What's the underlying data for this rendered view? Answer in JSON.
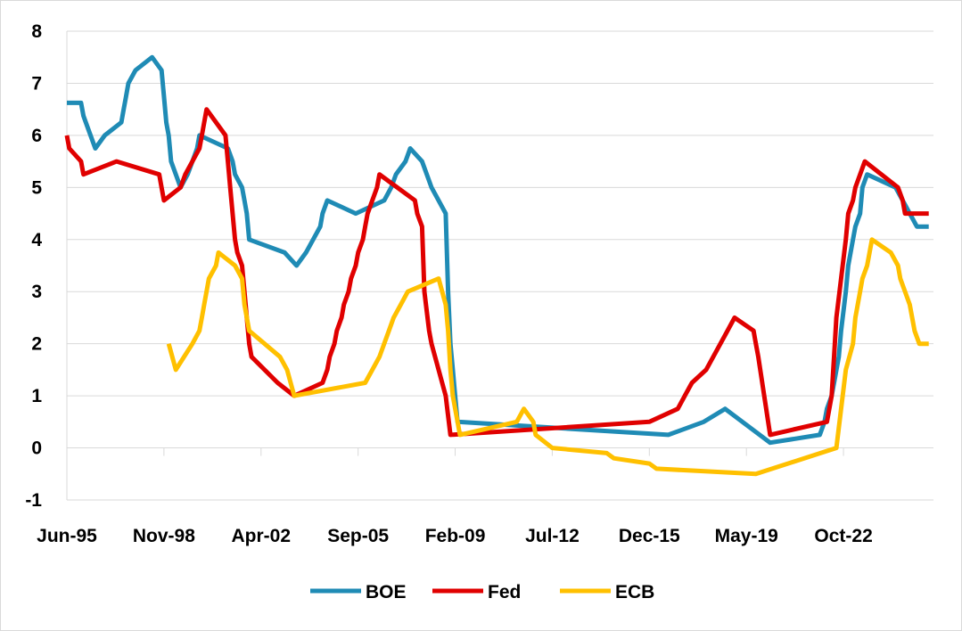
{
  "chart_data": {
    "type": "line",
    "title": "",
    "xlabel": "",
    "ylabel": "",
    "ylim": [
      -1,
      8
    ],
    "yticks": [
      "-1",
      "0",
      "1",
      "2",
      "3",
      "4",
      "5",
      "6",
      "7",
      "8"
    ],
    "xlim": [
      "1995-06",
      "2025-12"
    ],
    "xticks": [
      {
        "label": "Jun-95",
        "date": "1995-06"
      },
      {
        "label": "Nov-98",
        "date": "1998-11"
      },
      {
        "label": "Apr-02",
        "date": "2002-04"
      },
      {
        "label": "Sep-05",
        "date": "2005-09"
      },
      {
        "label": "Feb-09",
        "date": "2009-02"
      },
      {
        "label": "Jul-12",
        "date": "2012-07"
      },
      {
        "label": "Dec-15",
        "date": "2015-12"
      },
      {
        "label": "May-19",
        "date": "2019-05"
      },
      {
        "label": "Oct-22",
        "date": "2022-10"
      }
    ],
    "grid": "horizontal",
    "legend_position": "bottom",
    "series": [
      {
        "name": "BOE",
        "color": "#1f8bb5",
        "points": [
          [
            "1995-06",
            6.625
          ],
          [
            "1995-12",
            6.625
          ],
          [
            "1996-01",
            6.375
          ],
          [
            "1996-03",
            6.125
          ],
          [
            "1996-06",
            5.75
          ],
          [
            "1996-10",
            6.0
          ],
          [
            "1997-05",
            6.25
          ],
          [
            "1997-06",
            6.5
          ],
          [
            "1997-07",
            6.75
          ],
          [
            "1997-08",
            7.0
          ],
          [
            "1997-11",
            7.25
          ],
          [
            "1998-06",
            7.5
          ],
          [
            "1998-10",
            7.25
          ],
          [
            "1998-11",
            6.75
          ],
          [
            "1998-12",
            6.25
          ],
          [
            "1999-01",
            6.0
          ],
          [
            "1999-02",
            5.5
          ],
          [
            "1999-04",
            5.25
          ],
          [
            "1999-06",
            5.0
          ],
          [
            "1999-09",
            5.25
          ],
          [
            "1999-11",
            5.5
          ],
          [
            "2000-01",
            5.75
          ],
          [
            "2000-02",
            6.0
          ],
          [
            "2001-02",
            5.75
          ],
          [
            "2001-04",
            5.5
          ],
          [
            "2001-05",
            5.25
          ],
          [
            "2001-08",
            5.0
          ],
          [
            "2001-09",
            4.75
          ],
          [
            "2001-10",
            4.5
          ],
          [
            "2001-11",
            4.0
          ],
          [
            "2003-02",
            3.75
          ],
          [
            "2003-07",
            3.5
          ],
          [
            "2003-11",
            3.75
          ],
          [
            "2004-02",
            4.0
          ],
          [
            "2004-05",
            4.25
          ],
          [
            "2004-06",
            4.5
          ],
          [
            "2004-08",
            4.75
          ],
          [
            "2005-08",
            4.5
          ],
          [
            "2006-08",
            4.75
          ],
          [
            "2006-11",
            5.0
          ],
          [
            "2007-01",
            5.25
          ],
          [
            "2007-05",
            5.5
          ],
          [
            "2007-07",
            5.75
          ],
          [
            "2007-12",
            5.5
          ],
          [
            "2008-02",
            5.25
          ],
          [
            "2008-04",
            5.0
          ],
          [
            "2008-10",
            4.5
          ],
          [
            "2008-11",
            3.0
          ],
          [
            "2008-12",
            2.0
          ],
          [
            "2009-01",
            1.5
          ],
          [
            "2009-02",
            1.0
          ],
          [
            "2009-03",
            0.5
          ],
          [
            "2016-08",
            0.25
          ],
          [
            "2017-11",
            0.5
          ],
          [
            "2018-08",
            0.75
          ],
          [
            "2020-03",
            0.1
          ],
          [
            "2021-12",
            0.25
          ],
          [
            "2022-02",
            0.5
          ],
          [
            "2022-03",
            0.75
          ],
          [
            "2022-05",
            1.0
          ],
          [
            "2022-06",
            1.25
          ],
          [
            "2022-08",
            1.75
          ],
          [
            "2022-09",
            2.25
          ],
          [
            "2022-11",
            3.0
          ],
          [
            "2022-12",
            3.5
          ],
          [
            "2023-02",
            4.0
          ],
          [
            "2023-03",
            4.25
          ],
          [
            "2023-05",
            4.5
          ],
          [
            "2023-06",
            5.0
          ],
          [
            "2023-08",
            5.25
          ],
          [
            "2024-08",
            5.0
          ],
          [
            "2024-11",
            4.75
          ],
          [
            "2025-02",
            4.5
          ],
          [
            "2025-05",
            4.25
          ],
          [
            "2025-10",
            4.25
          ]
        ]
      },
      {
        "name": "Fed",
        "color": "#e00000",
        "points": [
          [
            "1995-06",
            6.0
          ],
          [
            "1995-07",
            5.75
          ],
          [
            "1995-12",
            5.5
          ],
          [
            "1996-01",
            5.25
          ],
          [
            "1997-03",
            5.5
          ],
          [
            "1998-09",
            5.25
          ],
          [
            "1998-10",
            5.0
          ],
          [
            "1998-11",
            4.75
          ],
          [
            "1999-06",
            5.0
          ],
          [
            "1999-08",
            5.25
          ],
          [
            "1999-11",
            5.5
          ],
          [
            "2000-02",
            5.75
          ],
          [
            "2000-03",
            6.0
          ],
          [
            "2000-05",
            6.5
          ],
          [
            "2001-01",
            6.0
          ],
          [
            "2001-02",
            5.5
          ],
          [
            "2001-03",
            5.0
          ],
          [
            "2001-04",
            4.5
          ],
          [
            "2001-05",
            4.0
          ],
          [
            "2001-06",
            3.75
          ],
          [
            "2001-08",
            3.5
          ],
          [
            "2001-09",
            3.0
          ],
          [
            "2001-10",
            2.5
          ],
          [
            "2001-11",
            2.0
          ],
          [
            "2001-12",
            1.75
          ],
          [
            "2002-11",
            1.25
          ],
          [
            "2003-06",
            1.0
          ],
          [
            "2004-06",
            1.25
          ],
          [
            "2004-08",
            1.5
          ],
          [
            "2004-09",
            1.75
          ],
          [
            "2004-11",
            2.0
          ],
          [
            "2004-12",
            2.25
          ],
          [
            "2005-02",
            2.5
          ],
          [
            "2005-03",
            2.75
          ],
          [
            "2005-05",
            3.0
          ],
          [
            "2005-06",
            3.25
          ],
          [
            "2005-08",
            3.5
          ],
          [
            "2005-09",
            3.75
          ],
          [
            "2005-11",
            4.0
          ],
          [
            "2005-12",
            4.25
          ],
          [
            "2006-01",
            4.5
          ],
          [
            "2006-03",
            4.75
          ],
          [
            "2006-05",
            5.0
          ],
          [
            "2006-06",
            5.25
          ],
          [
            "2007-09",
            4.75
          ],
          [
            "2007-10",
            4.5
          ],
          [
            "2007-12",
            4.25
          ],
          [
            "2008-01",
            3.0
          ],
          [
            "2008-03",
            2.25
          ],
          [
            "2008-04",
            2.0
          ],
          [
            "2008-10",
            1.0
          ],
          [
            "2008-12",
            0.25
          ],
          [
            "2015-12",
            0.5
          ],
          [
            "2016-12",
            0.75
          ],
          [
            "2017-03",
            1.0
          ],
          [
            "2017-06",
            1.25
          ],
          [
            "2017-12",
            1.5
          ],
          [
            "2018-03",
            1.75
          ],
          [
            "2018-06",
            2.0
          ],
          [
            "2018-09",
            2.25
          ],
          [
            "2018-12",
            2.5
          ],
          [
            "2019-08",
            2.25
          ],
          [
            "2019-09",
            2.0
          ],
          [
            "2019-10",
            1.75
          ],
          [
            "2020-03",
            0.25
          ],
          [
            "2022-03",
            0.5
          ],
          [
            "2022-05",
            1.0
          ],
          [
            "2022-06",
            1.75
          ],
          [
            "2022-07",
            2.5
          ],
          [
            "2022-09",
            3.25
          ],
          [
            "2022-11",
            4.0
          ],
          [
            "2022-12",
            4.5
          ],
          [
            "2023-02",
            4.75
          ],
          [
            "2023-03",
            5.0
          ],
          [
            "2023-05",
            5.25
          ],
          [
            "2023-07",
            5.5
          ],
          [
            "2024-09",
            5.0
          ],
          [
            "2024-11",
            4.75
          ],
          [
            "2024-12",
            4.5
          ],
          [
            "2025-10",
            4.5
          ]
        ]
      },
      {
        "name": "ECB",
        "color": "#ffc000",
        "points": [
          [
            "1999-01",
            2.0
          ],
          [
            "1999-04",
            1.5
          ],
          [
            "1999-11",
            2.0
          ],
          [
            "2000-02",
            2.25
          ],
          [
            "2000-03",
            2.5
          ],
          [
            "2000-04",
            2.75
          ],
          [
            "2000-06",
            3.25
          ],
          [
            "2000-09",
            3.5
          ],
          [
            "2000-10",
            3.75
          ],
          [
            "2001-05",
            3.5
          ],
          [
            "2001-08",
            3.25
          ],
          [
            "2001-09",
            2.75
          ],
          [
            "2001-11",
            2.25
          ],
          [
            "2002-12",
            1.75
          ],
          [
            "2003-03",
            1.5
          ],
          [
            "2003-06",
            1.0
          ],
          [
            "2005-12",
            1.25
          ],
          [
            "2006-03",
            1.5
          ],
          [
            "2006-06",
            1.75
          ],
          [
            "2006-08",
            2.0
          ],
          [
            "2006-10",
            2.25
          ],
          [
            "2006-12",
            2.5
          ],
          [
            "2007-03",
            2.75
          ],
          [
            "2007-06",
            3.0
          ],
          [
            "2008-07",
            3.25
          ],
          [
            "2008-10",
            2.75
          ],
          [
            "2008-11",
            2.25
          ],
          [
            "2008-12",
            1.5
          ],
          [
            "2009-01",
            1.0
          ],
          [
            "2009-03",
            0.5
          ],
          [
            "2009-04",
            0.25
          ],
          [
            "2011-04",
            0.5
          ],
          [
            "2011-07",
            0.75
          ],
          [
            "2011-11",
            0.5
          ],
          [
            "2011-12",
            0.25
          ],
          [
            "2012-07",
            0.0
          ],
          [
            "2014-06",
            -0.1
          ],
          [
            "2014-09",
            -0.2
          ],
          [
            "2015-12",
            -0.3
          ],
          [
            "2016-03",
            -0.4
          ],
          [
            "2019-09",
            -0.5
          ],
          [
            "2022-07",
            0.0
          ],
          [
            "2022-09",
            0.75
          ],
          [
            "2022-11",
            1.5
          ],
          [
            "2023-02",
            2.0
          ],
          [
            "2023-03",
            2.5
          ],
          [
            "2023-05",
            3.0
          ],
          [
            "2023-06",
            3.25
          ],
          [
            "2023-08",
            3.5
          ],
          [
            "2023-09",
            3.75
          ],
          [
            "2023-10",
            4.0
          ],
          [
            "2024-06",
            3.75
          ],
          [
            "2024-09",
            3.5
          ],
          [
            "2024-10",
            3.25
          ],
          [
            "2024-12",
            3.0
          ],
          [
            "2025-02",
            2.75
          ],
          [
            "2025-03",
            2.5
          ],
          [
            "2025-04",
            2.25
          ],
          [
            "2025-06",
            2.0
          ],
          [
            "2025-10",
            2.0
          ]
        ]
      }
    ]
  }
}
